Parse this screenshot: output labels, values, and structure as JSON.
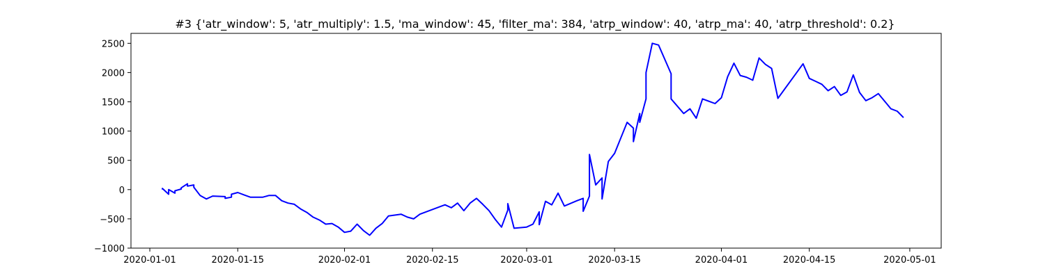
{
  "chart_data": {
    "type": "line",
    "title": "#3 {'atr_window': 5, 'atr_multiply': 1.5, 'ma_window': 45, 'filter_ma': 384, 'atrp_window': 40, 'atrp_ma': 40, 'atrp_threshold': 0.2}",
    "xlabel": "",
    "ylabel": "",
    "x_ticks": [
      "2020-01-01",
      "2020-01-15",
      "2020-02-01",
      "2020-02-15",
      "2020-03-01",
      "2020-03-15",
      "2020-04-01",
      "2020-04-15",
      "2020-05-01"
    ],
    "y_ticks": [
      2500,
      2000,
      1500,
      1000,
      500,
      0,
      -500,
      -1000
    ],
    "xlim": [
      "2019-12-29",
      "2020-05-06"
    ],
    "ylim": [
      -1000,
      2670
    ],
    "grid": false,
    "line_color": "#0000ff",
    "series": [
      {
        "x": [
          "2020-01-03",
          "2020-01-03",
          "2020-01-04",
          "2020-01-04",
          "2020-01-05",
          "2020-01-05",
          "2020-01-06",
          "2020-01-06",
          "2020-01-07",
          "2020-01-07",
          "2020-01-08",
          "2020-01-08",
          "2020-01-09",
          "2020-01-10",
          "2020-01-11",
          "2020-01-13",
          "2020-01-13",
          "2020-01-14",
          "2020-01-14",
          "2020-01-15",
          "2020-01-16",
          "2020-01-17",
          "2020-01-19",
          "2020-01-20",
          "2020-01-21",
          "2020-01-22",
          "2020-01-23",
          "2020-01-24",
          "2020-01-25",
          "2020-01-26",
          "2020-01-27",
          "2020-01-28",
          "2020-01-29",
          "2020-01-30",
          "2020-01-31",
          "2020-02-01",
          "2020-02-02",
          "2020-02-03",
          "2020-02-04",
          "2020-02-05",
          "2020-02-06",
          "2020-02-07",
          "2020-02-08",
          "2020-02-10",
          "2020-02-11",
          "2020-02-12",
          "2020-02-13",
          "2020-02-14",
          "2020-02-17",
          "2020-02-18",
          "2020-02-19",
          "2020-02-20",
          "2020-02-21",
          "2020-02-22",
          "2020-02-23",
          "2020-02-24",
          "2020-02-25",
          "2020-02-26",
          "2020-02-27",
          "2020-02-27",
          "2020-02-28",
          "2020-03-01",
          "2020-03-02",
          "2020-03-03",
          "2020-03-03",
          "2020-03-04",
          "2020-03-05",
          "2020-03-06",
          "2020-03-07",
          "2020-03-09",
          "2020-03-10",
          "2020-03-10",
          "2020-03-11",
          "2020-03-11",
          "2020-03-12",
          "2020-03-13",
          "2020-03-13",
          "2020-03-14",
          "2020-03-15",
          "2020-03-17",
          "2020-03-18",
          "2020-03-18",
          "2020-03-19",
          "2020-03-19",
          "2020-03-20",
          "2020-03-20",
          "2020-03-21",
          "2020-03-22",
          "2020-03-24",
          "2020-03-24",
          "2020-03-26",
          "2020-03-27",
          "2020-03-28",
          "2020-03-29",
          "2020-03-31",
          "2020-04-01",
          "2020-04-02",
          "2020-04-03",
          "2020-04-04",
          "2020-04-05",
          "2020-04-06",
          "2020-04-07",
          "2020-04-08",
          "2020-04-09",
          "2020-04-10",
          "2020-04-14",
          "2020-04-15",
          "2020-04-16",
          "2020-04-17",
          "2020-04-18",
          "2020-04-19",
          "2020-04-20",
          "2020-04-21",
          "2020-04-22",
          "2020-04-23",
          "2020-04-24",
          "2020-04-25",
          "2020-04-26",
          "2020-04-28",
          "2020-04-29",
          "2020-04-30"
        ],
        "values": [
          0,
          20,
          -80,
          0,
          -60,
          -20,
          10,
          30,
          100,
          60,
          80,
          40,
          -100,
          -160,
          -110,
          -120,
          -150,
          -130,
          -80,
          -50,
          -90,
          -130,
          -130,
          -100,
          -100,
          -190,
          -230,
          -250,
          -330,
          -390,
          -470,
          -520,
          -590,
          -580,
          -640,
          -730,
          -710,
          -590,
          -700,
          -780,
          -660,
          -580,
          -450,
          -420,
          -470,
          -500,
          -420,
          -380,
          -260,
          -310,
          -230,
          -360,
          -230,
          -150,
          -250,
          -360,
          -510,
          -640,
          -350,
          -240,
          -660,
          -640,
          -590,
          -380,
          -600,
          -200,
          -260,
          -60,
          -280,
          -190,
          -150,
          -370,
          -110,
          600,
          80,
          200,
          -160,
          480,
          620,
          1150,
          1050,
          820,
          1300,
          1150,
          1550,
          2000,
          2500,
          2470,
          1980,
          1550,
          1300,
          1380,
          1220,
          1550,
          1470,
          1570,
          1930,
          2160,
          1950,
          1920,
          1870,
          2250,
          2140,
          2070,
          1560,
          2150,
          1900,
          1850,
          1800,
          1690,
          1760,
          1610,
          1670,
          1960,
          1660,
          1520,
          1570,
          1640,
          1380,
          1340,
          1230
        ]
      }
    ]
  }
}
